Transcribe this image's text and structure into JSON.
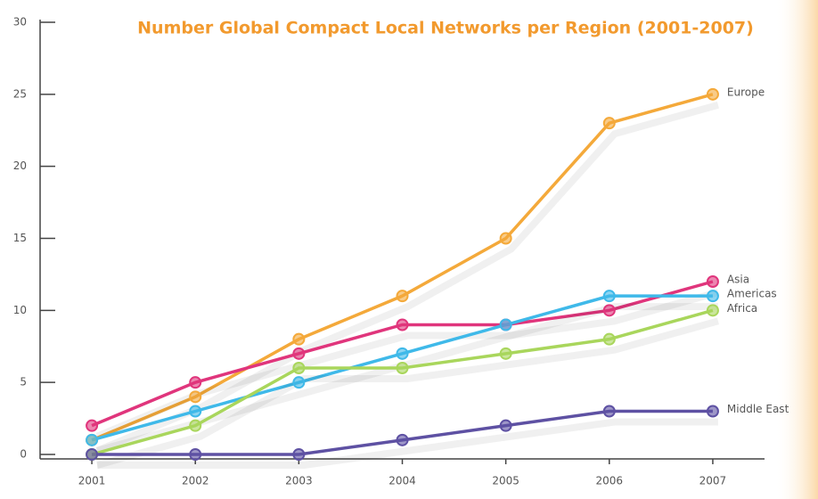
{
  "chart_data": {
    "type": "line",
    "title": "Number Global Compact Local Networks per Region (2001-2007)",
    "categories": [
      "2001",
      "2002",
      "2003",
      "2004",
      "2005",
      "2006",
      "2007"
    ],
    "series": [
      {
        "name": "Europe",
        "color": "#f4a93a",
        "values": [
          1,
          4,
          8,
          11,
          15,
          23,
          25
        ]
      },
      {
        "name": "Asia",
        "color": "#e0357c",
        "values": [
          2,
          5,
          7,
          9,
          9,
          10,
          12
        ]
      },
      {
        "name": "Americas",
        "color": "#3fb9e9",
        "values": [
          1,
          3,
          5,
          7,
          9,
          11,
          11
        ]
      },
      {
        "name": "Africa",
        "color": "#a9d65c",
        "values": [
          0,
          2,
          6,
          6,
          7,
          8,
          10
        ]
      },
      {
        "name": "Middle East",
        "color": "#5e51a3",
        "values": [
          0,
          0,
          0,
          1,
          2,
          3,
          3
        ]
      }
    ],
    "ylim": [
      0,
      30
    ],
    "yticks": [
      0,
      5,
      10,
      15,
      20,
      25,
      30
    ],
    "grid": false
  }
}
